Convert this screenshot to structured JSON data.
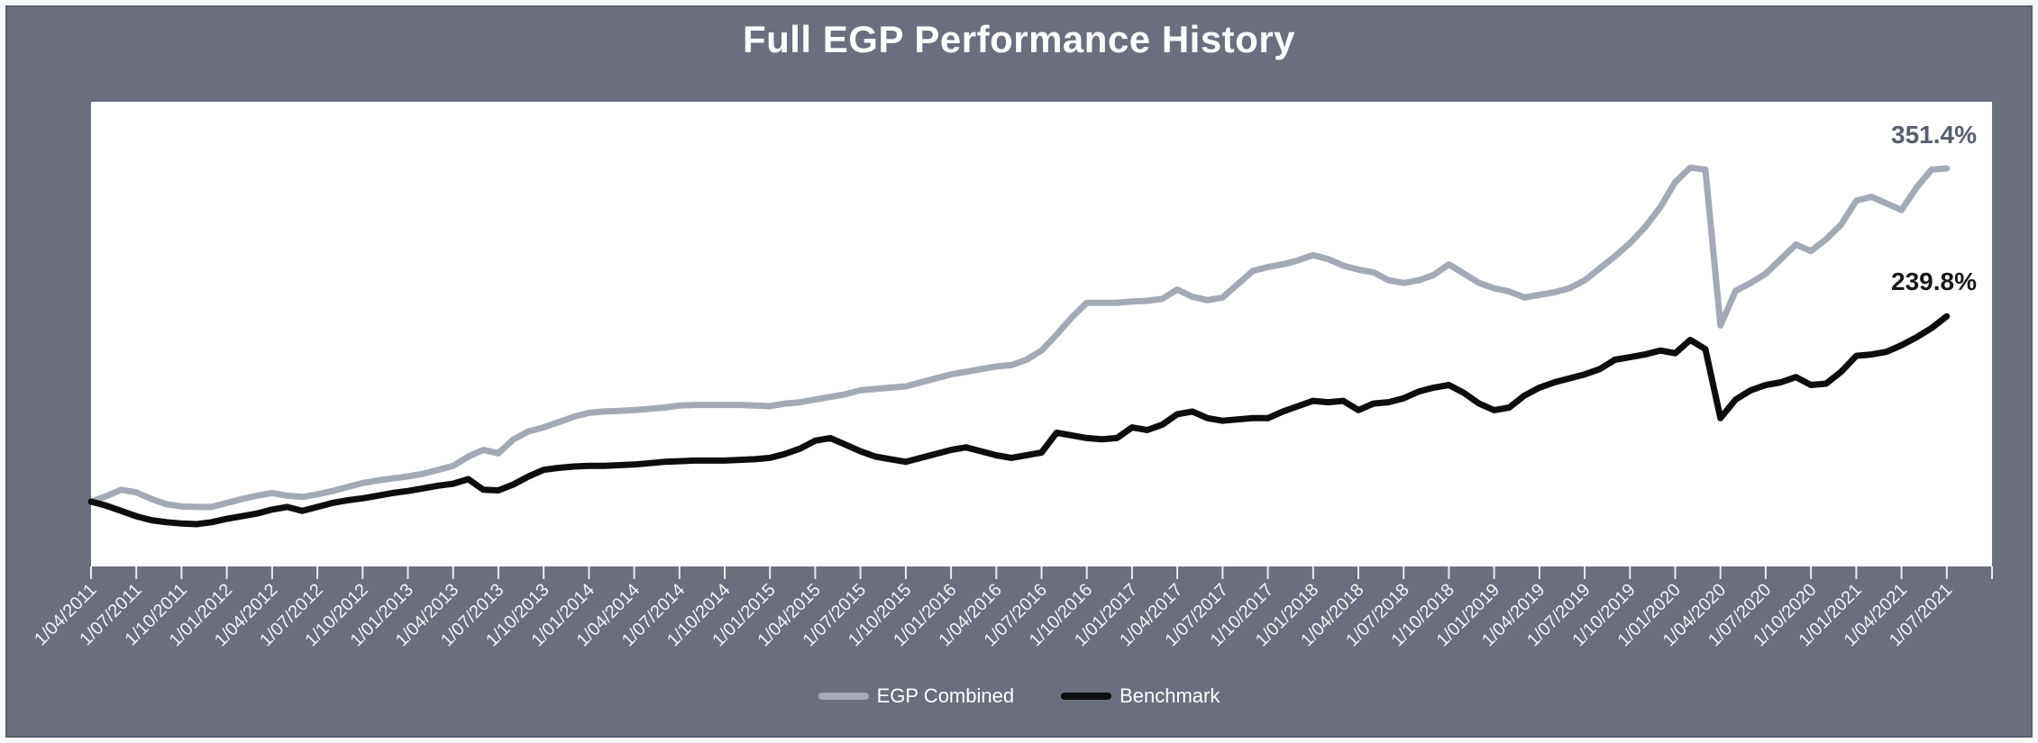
{
  "title": "Full EGP Performance History",
  "colors": {
    "background": "#6a6e7d",
    "frame_border": "#f7f8f9",
    "inner_edge": "rgba(60,64,78,0.35)",
    "plot_background": "#ffffff",
    "title_text": "#ffffff",
    "axis_text": "#f4f5f7",
    "tick": "#e9ebef",
    "legend_text": "#ffffff",
    "egp_line": "#a4aab5",
    "benchmark_line": "#0d0d0f",
    "egp_label": "#585e6d",
    "benchmark_label": "#17171c"
  },
  "chart_data": {
    "type": "line",
    "title": "Full EGP Performance History",
    "frequency": "monthly",
    "x_start": "1/04/2011",
    "x_end": "1/07/2021",
    "grid": false,
    "legend_position": "bottom",
    "y_axis": {
      "visible": false,
      "unit": "percent",
      "baseline": 100,
      "note": "cumulative value indexed to 100% at start; no y-axis shown"
    },
    "annotations": {
      "egp_end": "351.4%",
      "benchmark_end": "239.8%"
    },
    "x_tick_labels": [
      "1/04/2011",
      "1/07/2011",
      "1/10/2011",
      "1/01/2012",
      "1/04/2012",
      "1/07/2012",
      "1/10/2012",
      "1/01/2013",
      "1/04/2013",
      "1/07/2013",
      "1/10/2013",
      "1/01/2014",
      "1/04/2014",
      "1/07/2014",
      "1/10/2014",
      "1/01/2015",
      "1/04/2015",
      "1/07/2015",
      "1/10/2015",
      "1/01/2016",
      "1/04/2016",
      "1/07/2016",
      "1/10/2016",
      "1/01/2017",
      "1/04/2017",
      "1/07/2017",
      "1/10/2017",
      "1/01/2018",
      "1/04/2018",
      "1/07/2018",
      "1/10/2018",
      "1/01/2019",
      "1/04/2019",
      "1/07/2019",
      "1/10/2019",
      "1/01/2020",
      "1/04/2020",
      "1/07/2020",
      "1/10/2020",
      "1/01/2021",
      "1/04/2021",
      "1/07/2021"
    ],
    "series": [
      {
        "name": "EGP Combined",
        "color": "#a4aab5",
        "end_value_label": "351.4%",
        "values": [
          100,
          104,
          109,
          107,
          102,
          98,
          96.5,
          96,
          96,
          99,
          102,
          104.5,
          106.5,
          104.5,
          103.5,
          105.5,
          108,
          111,
          114,
          116,
          117.5,
          119,
          121,
          124,
          127,
          134,
          139,
          136.5,
          147,
          153,
          156,
          160,
          164,
          167,
          168,
          168.5,
          169,
          170,
          171,
          172.5,
          173,
          173,
          173,
          173,
          172.5,
          172,
          174,
          175,
          177,
          179,
          181,
          184,
          185,
          186,
          187,
          190,
          193,
          196,
          198,
          200,
          202,
          203,
          207,
          214,
          226,
          239,
          250,
          250,
          250,
          251,
          251.5,
          253,
          260,
          254.5,
          252,
          254,
          264,
          274,
          277,
          279,
          282,
          286,
          283,
          278,
          275,
          273,
          267,
          265,
          267,
          271,
          279,
          272,
          265,
          261,
          258.5,
          254,
          256,
          258,
          261,
          267,
          276,
          285,
          295,
          307,
          322,
          341,
          352,
          350.5,
          233,
          259,
          265,
          272,
          283,
          294,
          289,
          298,
          309,
          327,
          330,
          325,
          320,
          337,
          350.5,
          351.4
        ]
      },
      {
        "name": "Benchmark",
        "color": "#0d0d0f",
        "end_value_label": "239.8%",
        "values": [
          100,
          97,
          93,
          89,
          86,
          84.5,
          83.5,
          83,
          84.5,
          87,
          89,
          91,
          94,
          96,
          93,
          96,
          99,
          101,
          102.5,
          104.5,
          106.5,
          108,
          110,
          112,
          113.5,
          117,
          109,
          108.5,
          113,
          119,
          124,
          125.5,
          126.5,
          127,
          127,
          127.5,
          128,
          129,
          130,
          130.5,
          131,
          131,
          131,
          131.5,
          132,
          133,
          136,
          140,
          146,
          148,
          143,
          138,
          134,
          132,
          130,
          133,
          136,
          139,
          141,
          138,
          135,
          133,
          135,
          137,
          152,
          150,
          148,
          147,
          148,
          156,
          154,
          158,
          166,
          168,
          163,
          161,
          162,
          163,
          163,
          168,
          172,
          176,
          175,
          176,
          169,
          174,
          175,
          178,
          183,
          186,
          188,
          182,
          174,
          169,
          171,
          180,
          186,
          190,
          193,
          196,
          200,
          207,
          209,
          211,
          214,
          212,
          222,
          215,
          163,
          177,
          184,
          188,
          190,
          194,
          188,
          189,
          198,
          210,
          211,
          213,
          218,
          224,
          231,
          239.8
        ]
      }
    ]
  }
}
